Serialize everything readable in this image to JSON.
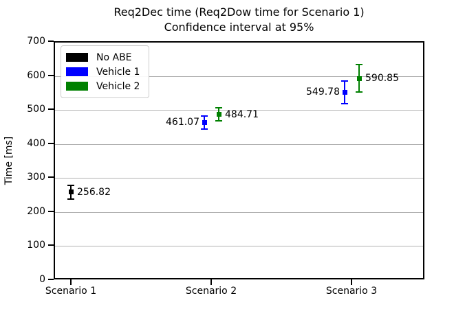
{
  "title": {
    "line1": "Req2Dec time (Req2Dow time for Scenario 1)",
    "line2": "Confidence interval at 95%"
  },
  "chart_data": {
    "type": "scatter",
    "subtype": "errorbar",
    "title": "Req2Dec time (Req2Dow time for Scenario 1)",
    "subtitle": "Confidence interval at 95%",
    "xlabel": "",
    "ylabel": "Time [ms]",
    "ylim": [
      0,
      700
    ],
    "yticks": [
      0,
      100,
      200,
      300,
      400,
      500,
      600,
      700
    ],
    "grid": "horizontal",
    "categories": [
      "Scenario 1",
      "Scenario 2",
      "Scenario 3"
    ],
    "legend": {
      "position": "upper-left",
      "entries": [
        {
          "label": "No ABE",
          "color": "#000000"
        },
        {
          "label": "Vehicle 1",
          "color": "#0000ff"
        },
        {
          "label": "Vehicle 2",
          "color": "#008000"
        }
      ]
    },
    "series": [
      {
        "name": "No ABE",
        "color": "#000000",
        "points": [
          {
            "category_index": 0,
            "value": 256.82,
            "error_est": 20,
            "label": "256.82",
            "label_side": "right"
          }
        ]
      },
      {
        "name": "Vehicle 1",
        "color": "#0000ff",
        "points": [
          {
            "category_index": 1,
            "value": 461.07,
            "error_est": 19,
            "label": "461.07",
            "label_side": "left"
          },
          {
            "category_index": 2,
            "value": 549.78,
            "error_est": 34,
            "label": "549.78",
            "label_side": "left"
          }
        ]
      },
      {
        "name": "Vehicle 2",
        "color": "#008000",
        "points": [
          {
            "category_index": 1,
            "value": 484.71,
            "error_est": 19,
            "label": "484.71",
            "label_side": "right"
          },
          {
            "category_index": 2,
            "value": 590.85,
            "error_est": 40,
            "label": "590.85",
            "label_side": "right"
          }
        ]
      }
    ]
  }
}
